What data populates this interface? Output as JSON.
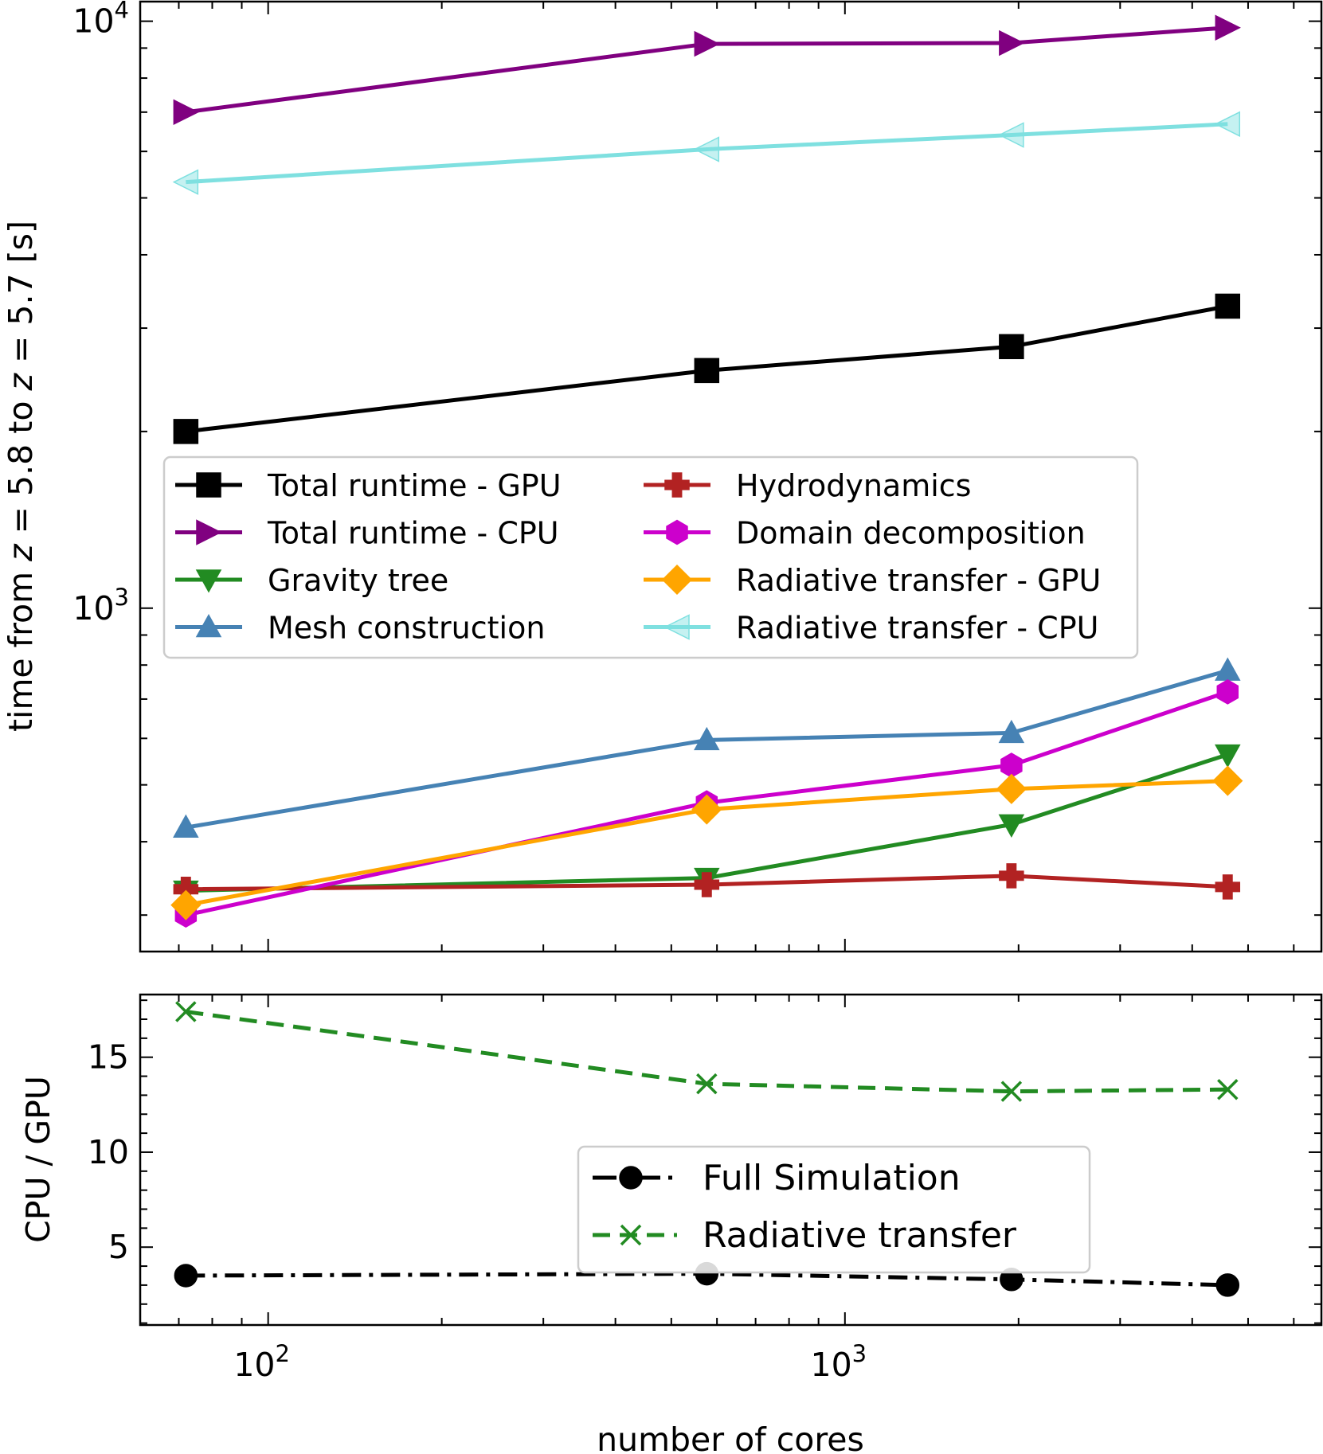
{
  "chart_data": [
    {
      "type": "line",
      "panel": "top",
      "xscale": "log",
      "yscale": "log",
      "xlim": [
        60,
        6700
      ],
      "ylim": [
        260,
        10800
      ],
      "x": [
        72,
        576,
        1944,
        4608
      ],
      "xlabel": "",
      "ylabel_parts": [
        "time from ",
        "z",
        " = 5.8 to ",
        "z",
        " = 5.7 [s]"
      ],
      "xticks": [
        {
          "base": "10",
          "exp": "2"
        },
        {
          "base": "10",
          "exp": "3"
        }
      ],
      "yticks": [
        {
          "base": "10",
          "exp": "3"
        },
        {
          "base": "10",
          "exp": "4"
        }
      ],
      "legend_position": "center-left",
      "series": [
        {
          "name": "Total runtime - GPU",
          "color": "#000000",
          "marker": "square",
          "values": [
            2000,
            2540,
            2790,
            3270
          ]
        },
        {
          "name": "Total runtime - CPU",
          "color": "#800080",
          "marker": "triangle-right",
          "values": [
            7000,
            9150,
            9180,
            9750
          ]
        },
        {
          "name": "Gravity tree",
          "color": "#228b22",
          "marker": "triangle-down",
          "values": [
            330,
            347,
            428,
            563
          ]
        },
        {
          "name": "Mesh construction",
          "color": "#4682b4",
          "marker": "triangle-up",
          "values": [
            423,
            596,
            613,
            783
          ]
        },
        {
          "name": "Hydrodynamics",
          "color": "#b22222",
          "marker": "plus",
          "values": [
            332,
            338,
            350,
            335
          ]
        },
        {
          "name": "Domain decomposition",
          "color": "#cc00cc",
          "marker": "hexagon",
          "values": [
            300,
            466,
            540,
            720
          ]
        },
        {
          "name": "Radiative transfer - GPU",
          "color": "#ffa500",
          "marker": "diamond",
          "values": [
            312,
            454,
            492,
            508
          ]
        },
        {
          "name": "Radiative transfer - CPU",
          "color": "#7fe0e0",
          "marker": "triangle-left",
          "values": [
            5320,
            6050,
            6400,
            6680
          ]
        }
      ]
    },
    {
      "type": "line",
      "panel": "bottom",
      "xscale": "log",
      "yscale": "linear",
      "xlim": [
        60,
        6700
      ],
      "ylim": [
        0.9,
        18.3
      ],
      "x": [
        72,
        576,
        1944,
        4608
      ],
      "xlabel": "number of cores",
      "ylabel": "CPU / GPU",
      "xticks": [
        {
          "base": "10",
          "exp": "2"
        },
        {
          "base": "10",
          "exp": "3"
        }
      ],
      "yticks": [
        {
          "value": 5,
          "label": "5"
        },
        {
          "value": 10,
          "label": "10"
        },
        {
          "value": 15,
          "label": "15"
        }
      ],
      "legend_position": "center-right",
      "series": [
        {
          "name": "Full Simulation",
          "color": "#000000",
          "marker": "circle",
          "linestyle": "dashdot",
          "values": [
            3.5,
            3.6,
            3.3,
            3.0
          ]
        },
        {
          "name": "Radiative transfer",
          "color": "#228b22",
          "marker": "x",
          "linestyle": "dashed",
          "values": [
            17.4,
            13.6,
            13.2,
            13.3
          ]
        }
      ]
    }
  ]
}
